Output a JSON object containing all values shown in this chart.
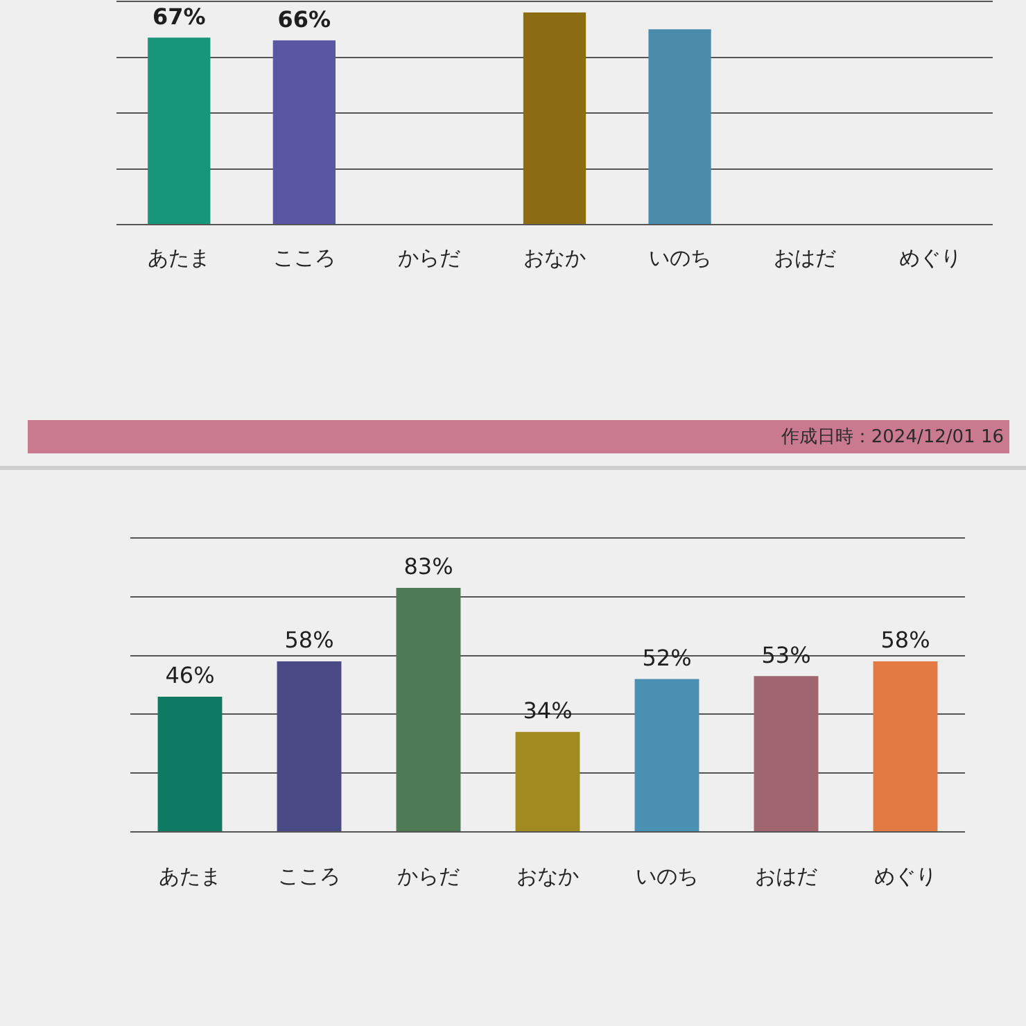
{
  "chart_data": [
    {
      "type": "bar",
      "categories": [
        "あたま",
        "こころ",
        "からだ",
        "おなか",
        "いのち",
        "おはだ",
        "めぐり"
      ],
      "values": [
        67,
        66,
        null,
        76,
        70,
        null,
        null
      ],
      "colors": [
        "#17967c",
        "#5b56a3",
        "#4a6e48",
        "#8c6c12",
        "#4b8cab",
        "#8c525c",
        "#d9581e"
      ],
      "value_labels": [
        "67%",
        "66%",
        null,
        null,
        null,
        null,
        null
      ],
      "ylim": [
        0,
        80
      ],
      "yticks": [
        {
          "value": 0,
          "label": null
        },
        {
          "value": 20,
          "label": null
        },
        {
          "value": 40,
          "label": null
        },
        {
          "value": 60,
          "label": null
        },
        {
          "value": 80,
          "label": null
        }
      ],
      "grid": "y",
      "tick_labels": "x",
      "annotations": [
        "作成日時：2024/12/01 16"
      ]
    },
    {
      "type": "bar",
      "categories": [
        "あたま",
        "こころ",
        "からだ",
        "おなか",
        "いのち",
        "おはだ",
        "めぐり"
      ],
      "values": [
        46,
        58,
        83,
        34,
        52,
        53,
        58
      ],
      "colors": [
        "#0f7a64",
        "#4a4a86",
        "#4f7a56",
        "#a38a20",
        "#4a90b2",
        "#a0666f",
        "#e37a44"
      ],
      "value_labels": [
        "46%",
        "58%",
        "83%",
        "34%",
        "52%",
        "53%",
        "58%"
      ],
      "ylim": [
        0,
        100
      ],
      "yticks": [
        {
          "value": 0,
          "label": null
        },
        {
          "value": 20,
          "label": null
        },
        {
          "value": 40,
          "label": null
        },
        {
          "value": 60,
          "label": null
        },
        {
          "value": 80,
          "label": null
        },
        {
          "value": 100,
          "label": null
        }
      ],
      "grid": "y",
      "tick_labels": "x"
    }
  ]
}
